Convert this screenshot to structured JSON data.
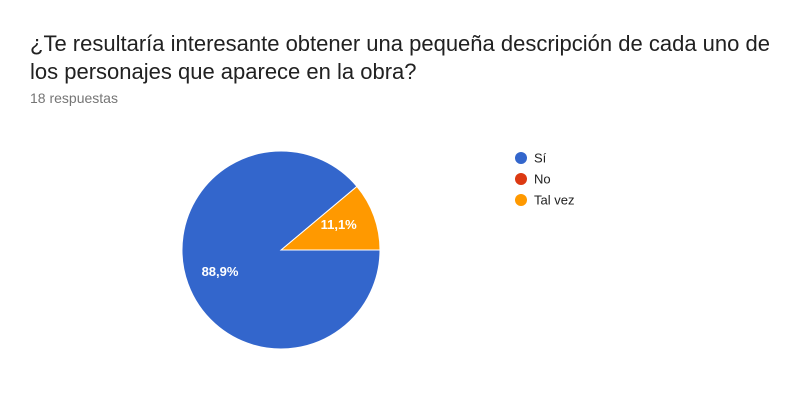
{
  "question": {
    "title": "¿Te resultaría interesante obtener una pequeña descripción de cada uno de los personajes que aparece en la obra?",
    "responses": "18 respuestas"
  },
  "chart_data": {
    "type": "pie",
    "title": "¿Te resultaría interesante obtener una pequeña descripción de cada uno de los personajes que aparece en la obra?",
    "legend_position": "right",
    "slices": [
      {
        "label": "Sí",
        "value": 88.9,
        "display": "88,9%",
        "color": "#3366cc"
      },
      {
        "label": "No",
        "value": 0,
        "display": "",
        "color": "#dc3912"
      },
      {
        "label": "Tal vez",
        "value": 11.1,
        "display": "11,1%",
        "color": "#ff9900"
      }
    ]
  }
}
